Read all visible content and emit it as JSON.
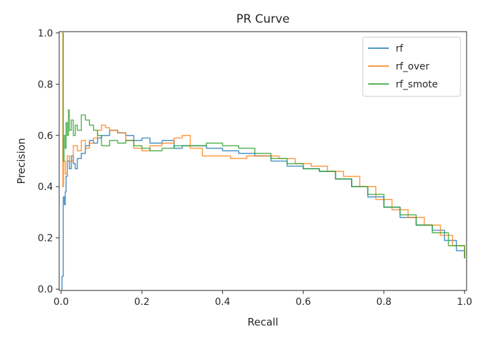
{
  "chart_data": {
    "type": "line",
    "title": "PR Curve",
    "xlabel": "Recall",
    "ylabel": "Precision",
    "xlim": [
      -0.005,
      1.005
    ],
    "ylim": [
      -0.005,
      1.005
    ],
    "xticks": [
      "0.0",
      "0.2",
      "0.4",
      "0.6",
      "0.8",
      "1.0"
    ],
    "yticks": [
      "0.0",
      "0.2",
      "0.4",
      "0.6",
      "0.8",
      "1.0"
    ],
    "grid": false,
    "legend": "top-right",
    "series": [
      {
        "name": "rf",
        "color": "#1f77b4",
        "x": [
          0.0,
          0.002,
          0.005,
          0.008,
          0.01,
          0.012,
          0.015,
          0.02,
          0.025,
          0.03,
          0.035,
          0.04,
          0.05,
          0.06,
          0.07,
          0.08,
          0.09,
          0.1,
          0.12,
          0.14,
          0.16,
          0.18,
          0.2,
          0.22,
          0.25,
          0.28,
          0.3,
          0.33,
          0.36,
          0.4,
          0.44,
          0.48,
          0.52,
          0.56,
          0.6,
          0.64,
          0.68,
          0.72,
          0.76,
          0.8,
          0.84,
          0.88,
          0.92,
          0.95,
          0.98,
          1.0
        ],
        "y": [
          0.0,
          0.05,
          0.36,
          0.33,
          0.38,
          0.44,
          0.5,
          0.47,
          0.52,
          0.49,
          0.47,
          0.51,
          0.53,
          0.56,
          0.58,
          0.57,
          0.59,
          0.6,
          0.62,
          0.61,
          0.6,
          0.58,
          0.59,
          0.57,
          0.58,
          0.55,
          0.56,
          0.56,
          0.55,
          0.54,
          0.53,
          0.52,
          0.5,
          0.48,
          0.47,
          0.46,
          0.43,
          0.4,
          0.36,
          0.32,
          0.28,
          0.25,
          0.23,
          0.19,
          0.15,
          0.12
        ]
      },
      {
        "name": "rf_over",
        "color": "#ff7f0e",
        "x": [
          0.002,
          0.004,
          0.006,
          0.01,
          0.015,
          0.02,
          0.03,
          0.04,
          0.05,
          0.06,
          0.07,
          0.08,
          0.09,
          0.1,
          0.11,
          0.12,
          0.14,
          0.16,
          0.18,
          0.2,
          0.22,
          0.25,
          0.28,
          0.3,
          0.32,
          0.35,
          0.38,
          0.42,
          0.46,
          0.5,
          0.54,
          0.58,
          0.62,
          0.66,
          0.7,
          0.74,
          0.78,
          0.82,
          0.86,
          0.9,
          0.94,
          0.97,
          1.0
        ],
        "y": [
          1.0,
          0.4,
          0.5,
          0.45,
          0.52,
          0.5,
          0.56,
          0.54,
          0.58,
          0.55,
          0.57,
          0.59,
          0.62,
          0.64,
          0.63,
          0.62,
          0.61,
          0.58,
          0.55,
          0.54,
          0.56,
          0.57,
          0.59,
          0.6,
          0.55,
          0.52,
          0.52,
          0.51,
          0.52,
          0.52,
          0.51,
          0.49,
          0.48,
          0.46,
          0.44,
          0.4,
          0.35,
          0.31,
          0.28,
          0.25,
          0.21,
          0.17,
          0.12
        ]
      },
      {
        "name": "rf_smote",
        "color": "#2ca02c",
        "x": [
          0.004,
          0.005,
          0.007,
          0.01,
          0.012,
          0.015,
          0.018,
          0.02,
          0.025,
          0.03,
          0.035,
          0.04,
          0.05,
          0.06,
          0.07,
          0.08,
          0.09,
          0.1,
          0.12,
          0.14,
          0.16,
          0.18,
          0.2,
          0.22,
          0.25,
          0.28,
          0.32,
          0.36,
          0.4,
          0.44,
          0.48,
          0.52,
          0.56,
          0.6,
          0.64,
          0.68,
          0.72,
          0.76,
          0.8,
          0.84,
          0.88,
          0.92,
          0.96,
          1.0
        ],
        "y": [
          1.0,
          0.5,
          0.6,
          0.55,
          0.65,
          0.6,
          0.7,
          0.62,
          0.66,
          0.6,
          0.64,
          0.62,
          0.68,
          0.66,
          0.64,
          0.62,
          0.6,
          0.56,
          0.58,
          0.57,
          0.58,
          0.56,
          0.55,
          0.54,
          0.55,
          0.56,
          0.56,
          0.57,
          0.56,
          0.55,
          0.53,
          0.51,
          0.49,
          0.47,
          0.46,
          0.43,
          0.4,
          0.37,
          0.32,
          0.29,
          0.25,
          0.22,
          0.17,
          0.12
        ]
      }
    ]
  }
}
